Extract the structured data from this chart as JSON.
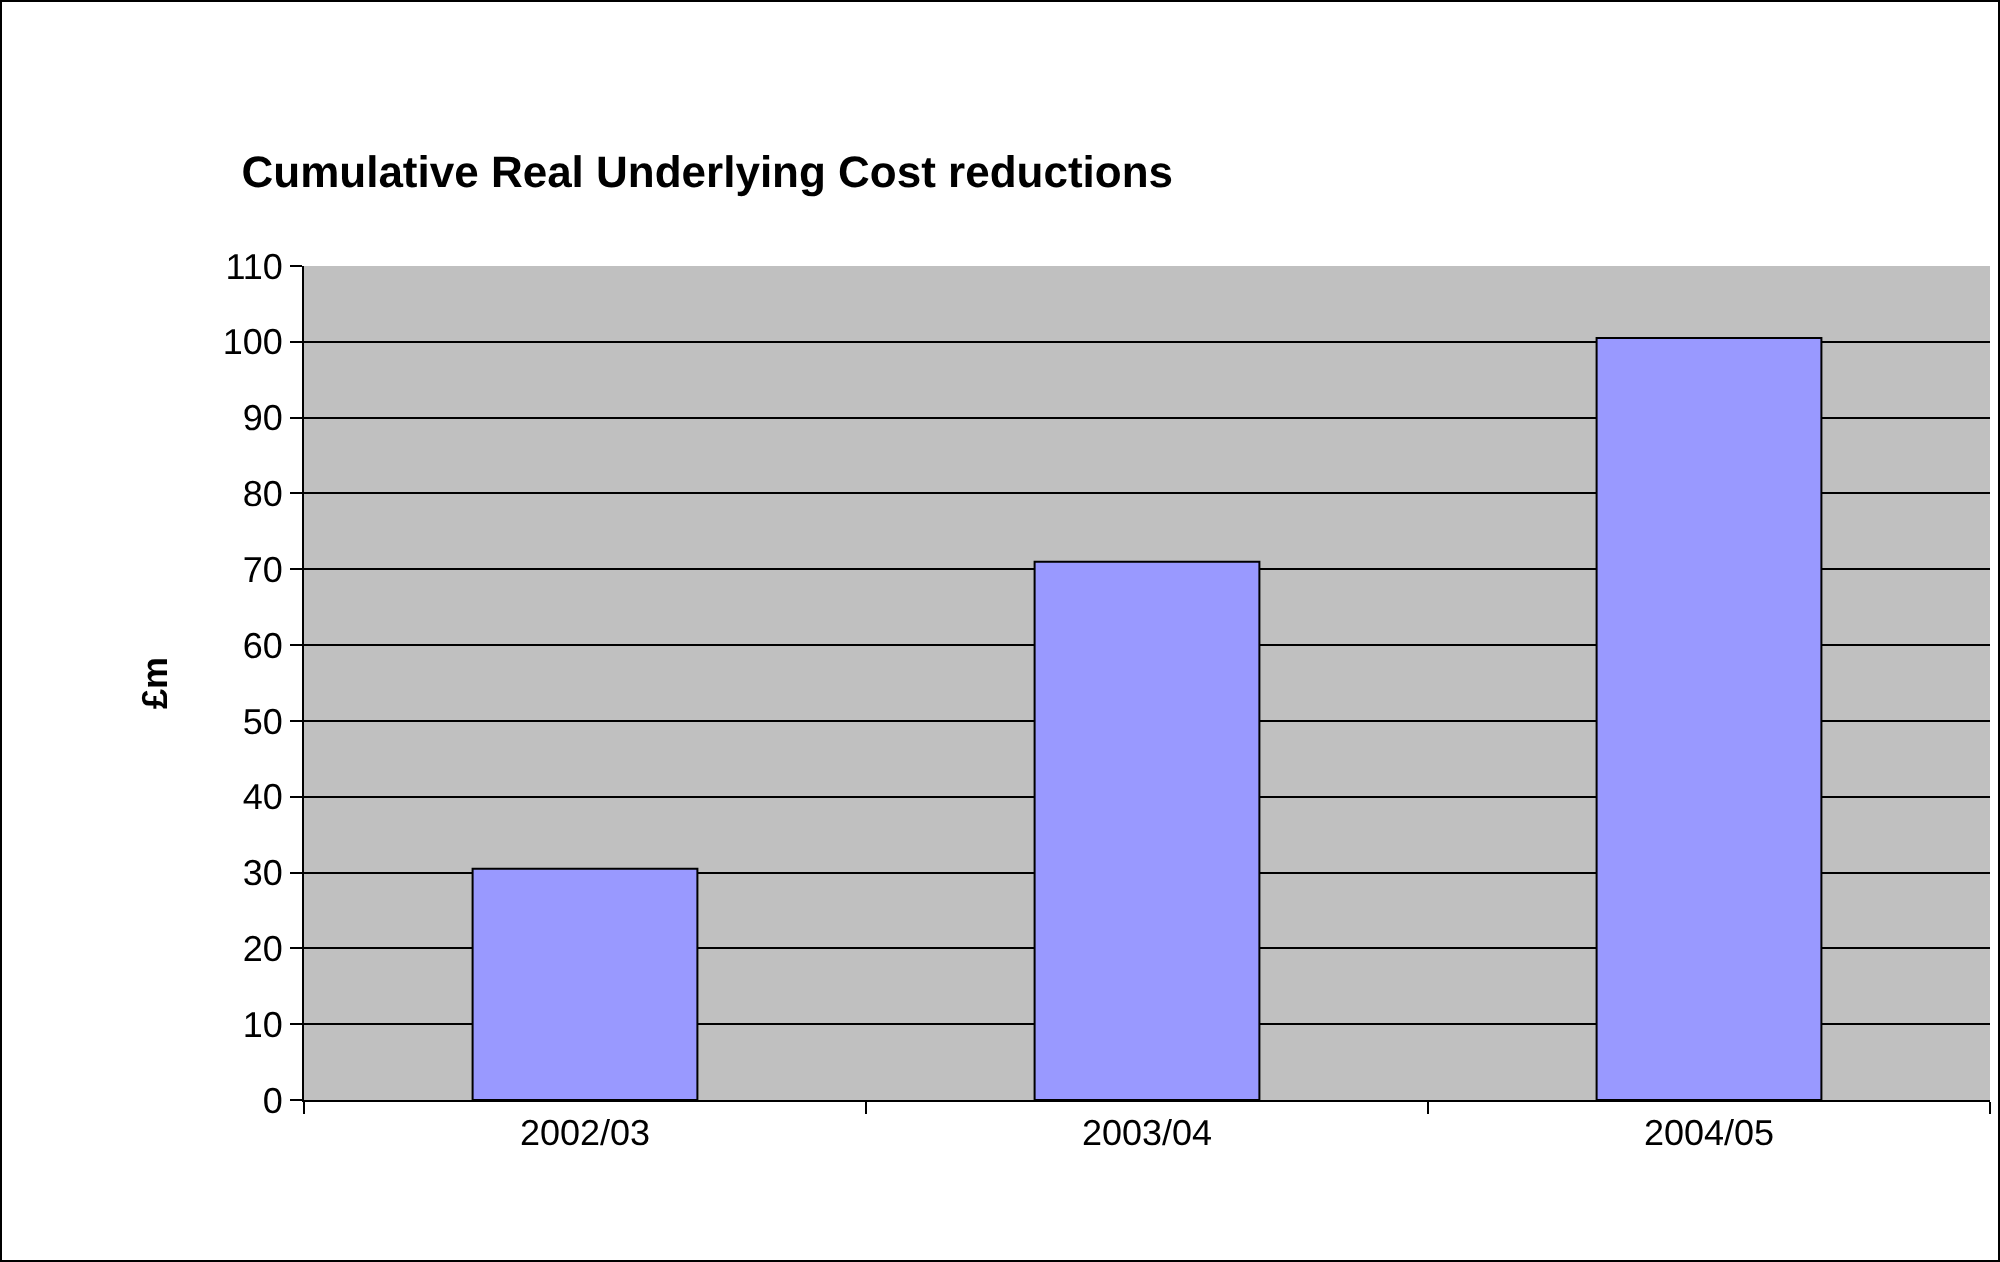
{
  "chart_data": {
    "type": "bar",
    "title": "Cumulative Real Underlying Cost reductions",
    "ylabel": "£m",
    "categories": [
      "2002/03",
      "2003/04",
      "2004/05"
    ],
    "values": [
      30.5,
      71,
      100.5
    ],
    "color": "#9999ff",
    "ylim": [
      0,
      110
    ],
    "yticks": [
      0,
      10,
      20,
      30,
      40,
      50,
      60,
      70,
      80,
      90,
      100,
      110
    ],
    "grid": "y"
  }
}
